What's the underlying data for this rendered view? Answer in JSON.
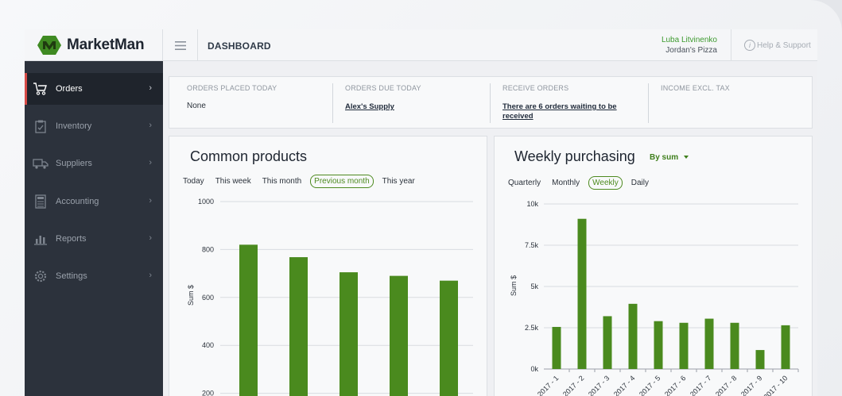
{
  "app": {
    "brand": "MarketMan",
    "page_title": "DASHBOARD"
  },
  "user": {
    "name": "Luba Litvinenko",
    "org": "Jordan's Pizza"
  },
  "help": {
    "label": "Help & Support"
  },
  "sidebar": {
    "items": [
      {
        "label": "Orders",
        "icon": "cart-icon",
        "active": true
      },
      {
        "label": "Inventory",
        "icon": "clipboard-icon",
        "active": false
      },
      {
        "label": "Suppliers",
        "icon": "truck-icon",
        "active": false
      },
      {
        "label": "Accounting",
        "icon": "calculator-icon",
        "active": false
      },
      {
        "label": "Reports",
        "icon": "bar-chart-icon",
        "active": false
      },
      {
        "label": "Settings",
        "icon": "gear-icon",
        "active": false
      }
    ]
  },
  "stats": [
    {
      "label": "ORDERS PLACED TODAY",
      "value": "None"
    },
    {
      "label": "ORDERS DUE TODAY",
      "value": "Alex's Supply"
    },
    {
      "label": "RECEIVE ORDERS",
      "value": "There are 6 orders waiting to be received"
    },
    {
      "label": "INCOME EXCL. TAX",
      "value": ""
    }
  ],
  "common_products": {
    "title": "Common products",
    "filters": [
      "Today",
      "This week",
      "This month",
      "Previous month",
      "This year"
    ],
    "active_filter": "Previous month"
  },
  "weekly_purchasing": {
    "title": "Weekly purchasing",
    "by_label": "By sum",
    "filters": [
      "Quarterly",
      "Monthly",
      "Weekly",
      "Daily"
    ],
    "active_filter": "Weekly"
  },
  "colors": {
    "bar": "#4a8a1e",
    "accent": "#3d9a2f",
    "active_nav": "#d64b47"
  },
  "chart_data": [
    {
      "type": "bar",
      "title": "Common products",
      "ylabel": "Sum $",
      "ylim": [
        0,
        1000
      ],
      "yticks": [
        "1000",
        "800",
        "600",
        "400",
        "200"
      ],
      "values": [
        820,
        768,
        705,
        690,
        670
      ],
      "grid": true
    },
    {
      "type": "bar",
      "title": "Weekly purchasing",
      "ylabel": "Sum $",
      "ylim": [
        0,
        10000
      ],
      "yticks": [
        "10k",
        "7.5k",
        "5k",
        "2.5k",
        "0k"
      ],
      "categories": [
        "2017 - 1",
        "2017 - 2",
        "2017 - 3",
        "2017 - 4",
        "2017 - 5",
        "2017 - 6",
        "2017 - 7",
        "2017 - 8",
        "2017 - 9",
        "2017 - 10"
      ],
      "values": [
        2550,
        9100,
        3200,
        3950,
        2900,
        2800,
        3050,
        2800,
        1150,
        2650
      ],
      "grid": true
    }
  ]
}
